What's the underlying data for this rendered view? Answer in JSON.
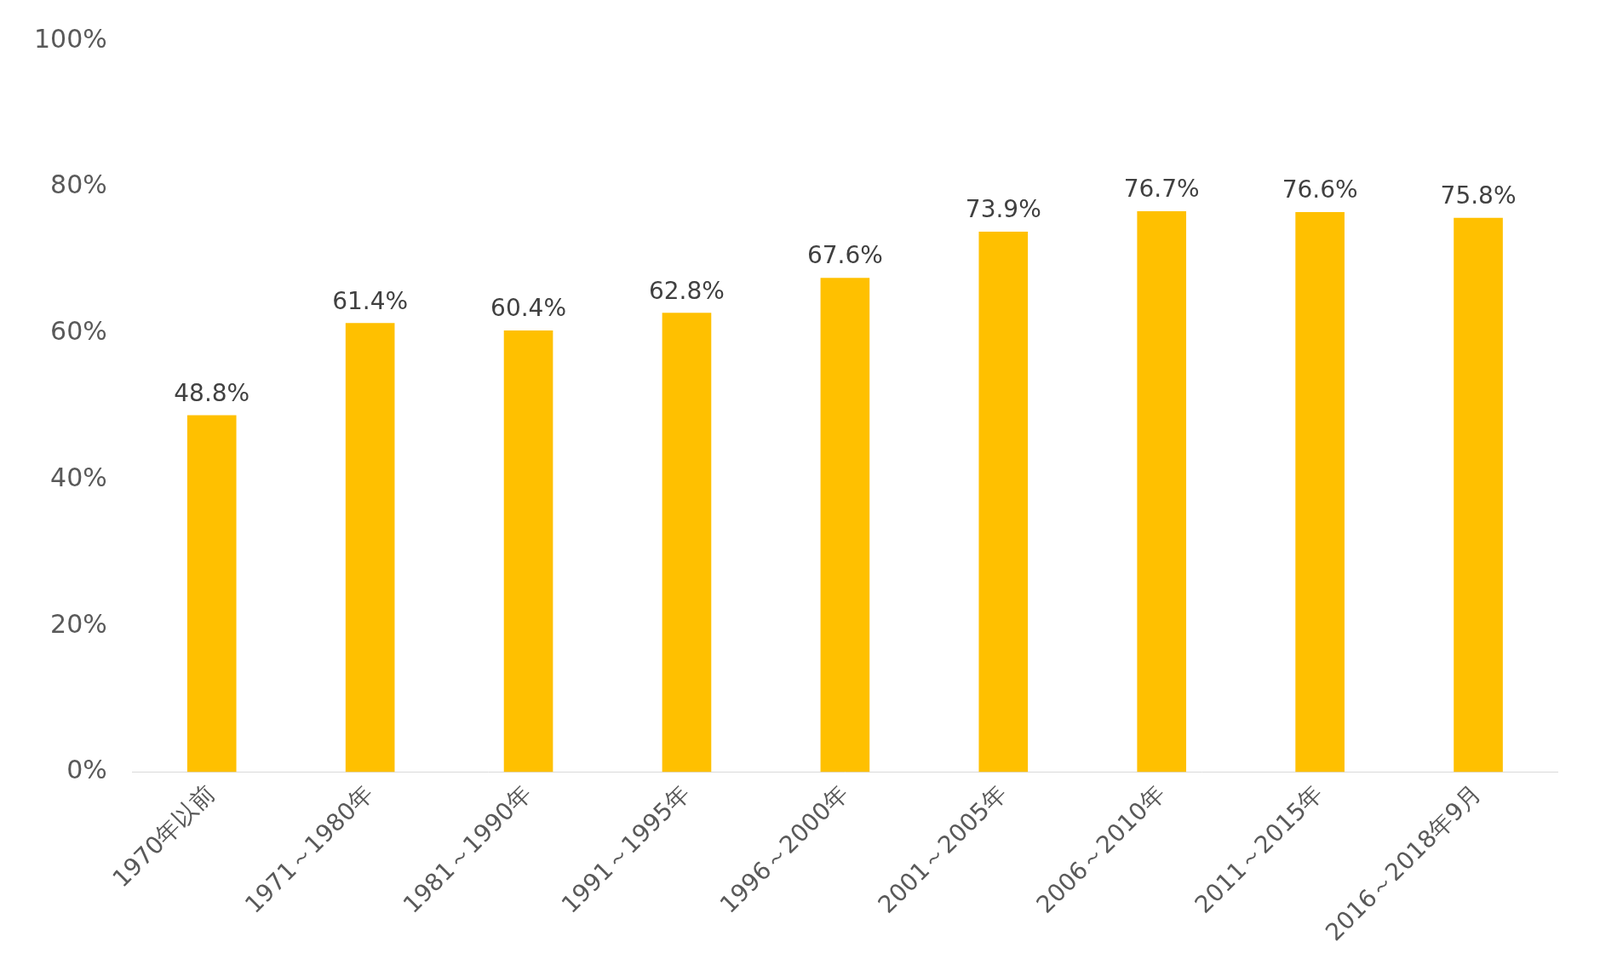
{
  "chart_data": {
    "type": "bar",
    "categories": [
      "1970年以前",
      "1971～1980年",
      "1981～1990年",
      "1991～1995年",
      "1996～2000年",
      "2001～2005年",
      "2006～2010年",
      "2011～2015年",
      "2016～2018年9月"
    ],
    "values": [
      48.8,
      61.4,
      60.4,
      62.8,
      67.6,
      73.9,
      76.7,
      76.6,
      75.8
    ],
    "value_labels": [
      "48.8%",
      "61.4%",
      "60.4%",
      "62.8%",
      "67.6%",
      "73.9%",
      "76.7%",
      "76.6%",
      "75.8%"
    ],
    "color": "#ffc000",
    "ylim": [
      0,
      100
    ],
    "yticks": [
      {
        "value": 0,
        "label": "0%"
      },
      {
        "value": 20,
        "label": "20%"
      },
      {
        "value": 40,
        "label": "40%"
      },
      {
        "value": 60,
        "label": "60%"
      },
      {
        "value": 80,
        "label": "80%"
      },
      {
        "value": 100,
        "label": "100%"
      }
    ],
    "grid": false,
    "data_labels": true
  }
}
